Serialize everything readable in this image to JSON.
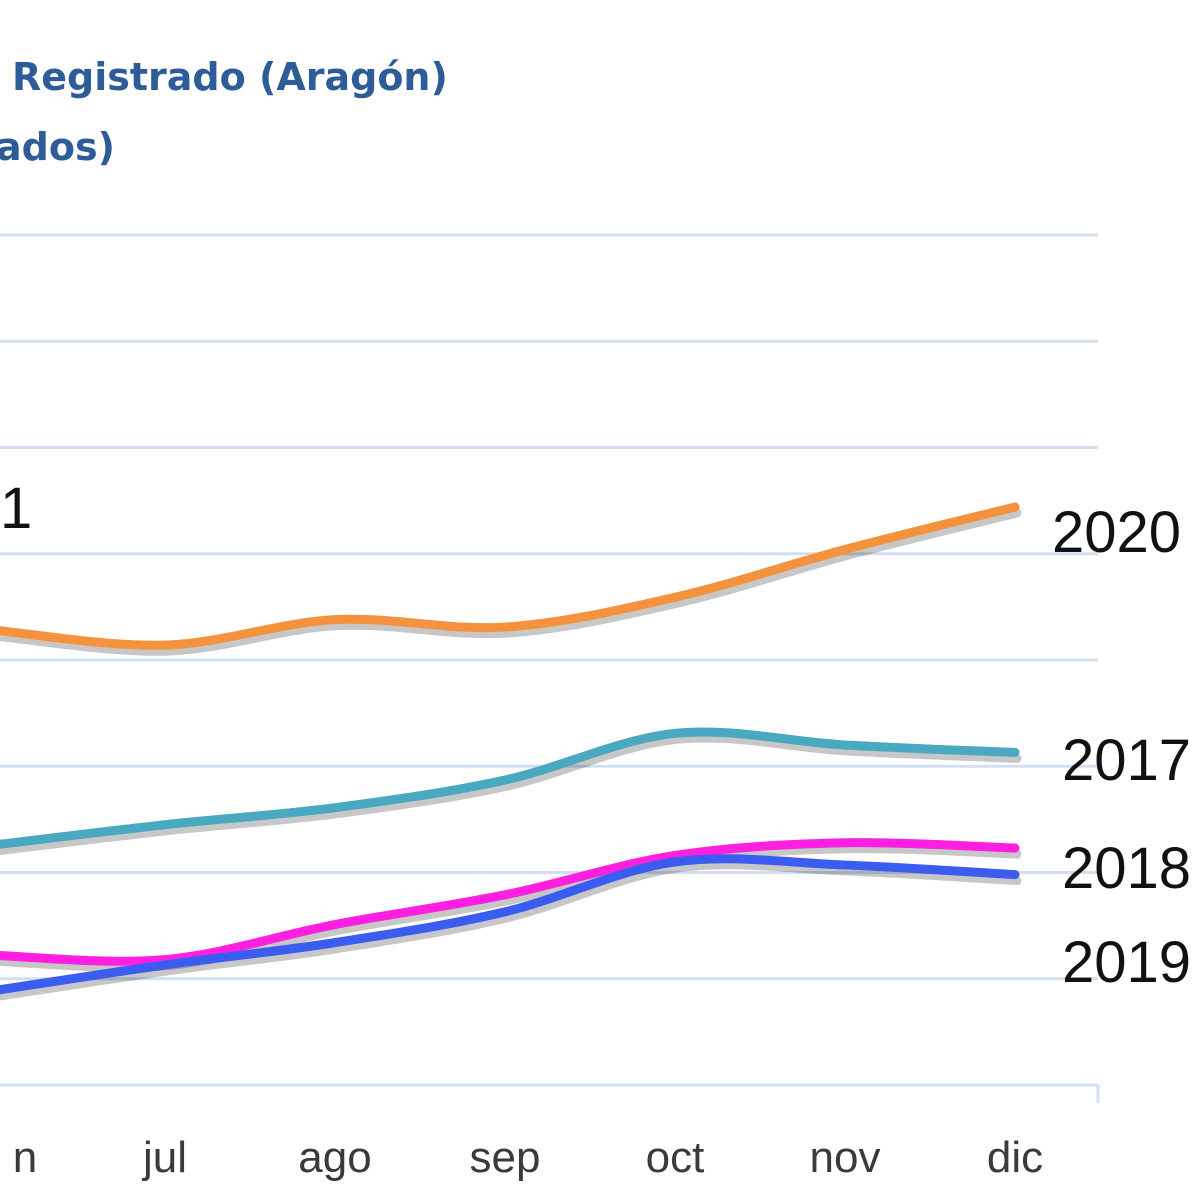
{
  "chart_data": {
    "type": "line",
    "title_lines": [
      "Registrado (Aragón)",
      "ados)"
    ],
    "x": [
      "n",
      "jul",
      "ago",
      "sep",
      "oct",
      "nov",
      "dic"
    ],
    "ylim": [
      0,
      8
    ],
    "y_units": "gridline steps (no y tick labels shown)",
    "grid": true,
    "partial_label": "1",
    "series": [
      {
        "name": "2020",
        "color": "#f5923e",
        "values": [
          4.28,
          4.14,
          4.38,
          4.31,
          4.59,
          5.04,
          5.44
        ]
      },
      {
        "name": "2017",
        "color": "#4aa8c0",
        "values": [
          2.26,
          2.45,
          2.61,
          2.87,
          3.31,
          3.2,
          3.13
        ]
      },
      {
        "name": "2018",
        "color": "#ff1fe0",
        "values": [
          1.22,
          1.18,
          1.51,
          1.79,
          2.16,
          2.28,
          2.23
        ]
      },
      {
        "name": "2019",
        "color": "#3b5cf0",
        "values": [
          0.89,
          1.13,
          1.34,
          1.63,
          2.1,
          2.07,
          1.98
        ]
      }
    ]
  }
}
